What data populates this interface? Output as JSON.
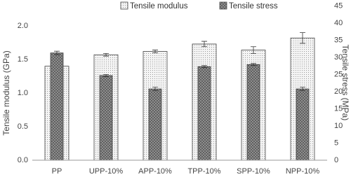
{
  "chart_data": {
    "type": "bar",
    "y_label": "Tensile modulus (GPa)",
    "y2_label": "Tensile stress (MPa)",
    "categories": [
      "PP",
      "UPP-10%",
      "APP-10%",
      "TPP-10%",
      "SPP-10%",
      "NPP-10%"
    ],
    "series": [
      {
        "name": "Tensile modulus",
        "color": "#f2f2f2",
        "values": [
          1.4,
          1.57,
          1.62,
          1.73,
          1.64,
          1.82
        ],
        "errors": [
          0.01,
          0.02,
          0.02,
          0.04,
          0.05,
          0.08
        ]
      },
      {
        "name": "Tensile stress",
        "color": "#8c8c8c",
        "axis": "y2",
        "values": [
          31.3,
          24.7,
          20.8,
          27.3,
          27.9,
          20.8
        ],
        "errors": [
          0.5,
          0.3,
          0.5,
          0.3,
          0.3,
          0.5
        ]
      }
    ],
    "ylim": [
      0,
      2.0
    ],
    "yticks": [
      {
        "value": 0,
        "label": "0.0"
      },
      0.5,
      {
        "value": 1,
        "label": "1.0"
      },
      1.5,
      {
        "value": 2,
        "label": "2.0"
      }
    ],
    "y2lim": [
      0,
      45
    ],
    "y2ticks": [
      0,
      5,
      10,
      15,
      20,
      25,
      30,
      35,
      40,
      45
    ],
    "grid": false,
    "legend": "top"
  }
}
